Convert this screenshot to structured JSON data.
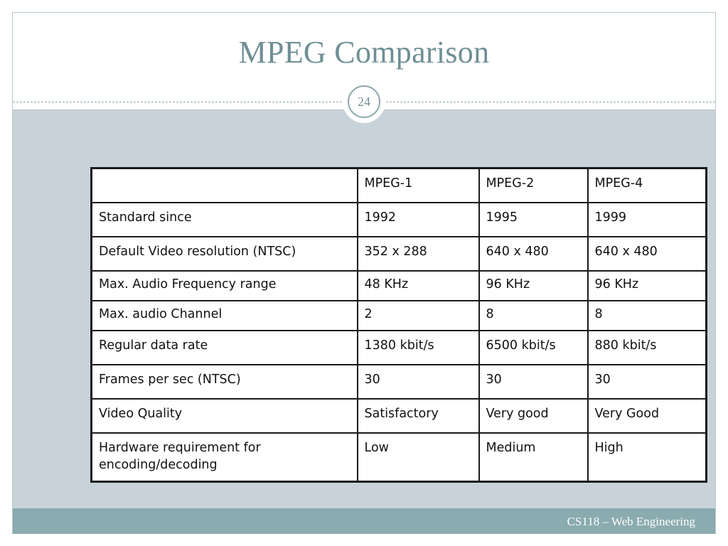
{
  "slide": {
    "title": "MPEG Comparison",
    "page_number": "24",
    "footer": "CS118 – Web Engineering"
  },
  "table": {
    "headers": [
      "",
      "MPEG-1",
      "MPEG-2",
      "MPEG-4"
    ],
    "rows": [
      {
        "label": "Standard since",
        "values": [
          "1992",
          "1995",
          "1999"
        ]
      },
      {
        "label": "Default Video resolution (NTSC)",
        "values": [
          "352 x 288",
          "640 x 480",
          "640 x 480"
        ]
      },
      {
        "label": "Max. Audio Frequency range",
        "values": [
          "48 KHz",
          "96 KHz",
          "96 KHz"
        ]
      },
      {
        "label": "Max. audio Channel",
        "values": [
          "2",
          "8",
          "8"
        ]
      },
      {
        "label": "Regular data rate",
        "values": [
          "1380 kbit/s",
          "6500 kbit/s",
          "880 kbit/s"
        ]
      },
      {
        "label": "Frames per sec (NTSC)",
        "values": [
          "30",
          "30",
          "30"
        ]
      },
      {
        "label": "Video Quality",
        "values": [
          "Satisfactory",
          "Very good",
          "Very Good"
        ]
      },
      {
        "label": "Hardware requirement for encoding/decoding",
        "values": [
          "Low",
          "Medium",
          "High"
        ]
      }
    ]
  },
  "colors": {
    "header_text": "#e07a00",
    "label_red": "#d42f2f",
    "label_green": "#22cc22",
    "content_background": "#c7d3d8",
    "footer_background": "#8aabaf",
    "title_color": "#6f8f96"
  }
}
